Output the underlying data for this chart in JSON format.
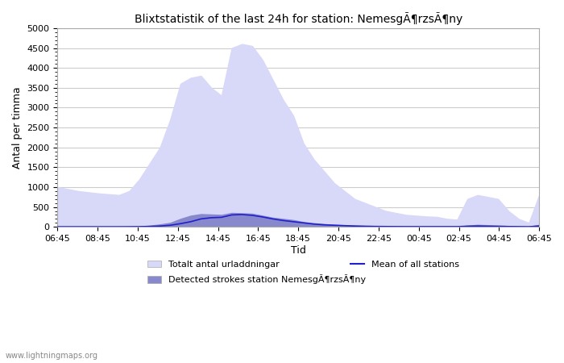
{
  "title": "Blixtstatistik of the last 24h for station: NemesgÃ¶rzsÃ¶ny",
  "xlabel": "Tid",
  "ylabel": "Antal per timma",
  "ylim": [
    0,
    5000
  ],
  "yticks": [
    0,
    500,
    1000,
    1500,
    2000,
    2500,
    3000,
    3500,
    4000,
    4500,
    5000
  ],
  "xtick_labels": [
    "06:45",
    "08:45",
    "10:45",
    "12:45",
    "14:45",
    "16:45",
    "18:45",
    "20:45",
    "22:45",
    "00:45",
    "02:45",
    "04:45",
    "06:45"
  ],
  "background_color": "#ffffff",
  "plot_bg_color": "#ffffff",
  "grid_color": "#cccccc",
  "fill_total_color": "#d8d8f8",
  "fill_station_color": "#8888cc",
  "line_mean_color": "#2020cc",
  "watermark": "www.lightningmaps.org",
  "legend_entries": [
    "Totalt antal urladdningar",
    "Mean of all stations",
    "Detected strokes station NemesgÃ¶rzsÃ¶ny"
  ],
  "total_data": [
    1000,
    950,
    900,
    870,
    840,
    820,
    800,
    900,
    1200,
    1600,
    2000,
    2700,
    3600,
    3750,
    3800,
    3500,
    3300,
    4500,
    4600,
    4550,
    4200,
    3700,
    3200,
    2800,
    2100,
    1700,
    1400,
    1100,
    900,
    700,
    600,
    500,
    400,
    350,
    300,
    280,
    260,
    250,
    200,
    180,
    700,
    800,
    750,
    700,
    400,
    200,
    100,
    800
  ],
  "station_data": [
    5,
    5,
    5,
    5,
    5,
    5,
    5,
    5,
    10,
    30,
    60,
    100,
    200,
    280,
    320,
    310,
    300,
    350,
    340,
    330,
    280,
    230,
    200,
    170,
    120,
    90,
    70,
    50,
    40,
    30,
    20,
    15,
    10,
    8,
    6,
    5,
    5,
    5,
    5,
    5,
    30,
    50,
    40,
    30,
    20,
    10,
    5,
    50
  ],
  "mean_data": [
    2,
    2,
    2,
    2,
    2,
    2,
    2,
    3,
    5,
    10,
    20,
    40,
    80,
    130,
    200,
    230,
    240,
    300,
    310,
    290,
    250,
    200,
    160,
    130,
    100,
    70,
    50,
    40,
    30,
    20,
    15,
    10,
    8,
    6,
    5,
    5,
    5,
    5,
    5,
    5,
    15,
    20,
    15,
    12,
    8,
    5,
    3,
    20
  ]
}
